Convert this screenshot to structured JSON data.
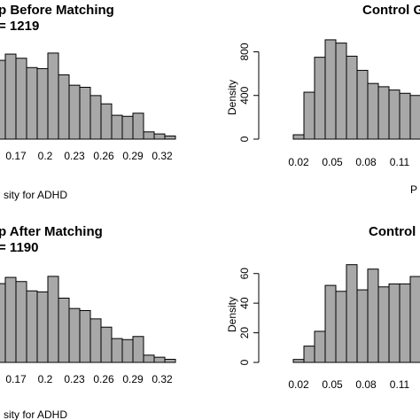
{
  "chart_data": [
    {
      "type": "bar",
      "title": "p Before Matching",
      "subtitle": "= 1219",
      "xlabel": "sity for ADHD",
      "ylabel": "",
      "x_ticks": [
        "0.17",
        "0.2",
        "0.23",
        "0.26",
        "0.29",
        "0.32"
      ],
      "y_ticks": [],
      "values": [
        760,
        820,
        780,
        690,
        680,
        830,
        620,
        520,
        500,
        420,
        340,
        230,
        220,
        250,
        70,
        50,
        30
      ],
      "ylim": [
        0,
        1000
      ]
    },
    {
      "type": "bar",
      "title": "Control G",
      "subtitle": "",
      "xlabel": "P",
      "ylabel": "Density",
      "x_ticks": [
        "0.02",
        "0.05",
        "0.08",
        "0.11"
      ],
      "y_ticks": [
        "0",
        "400",
        "800"
      ],
      "values": [
        40,
        430,
        750,
        910,
        880,
        760,
        630,
        510,
        480,
        450,
        420,
        400
      ],
      "ylim": [
        0,
        950
      ]
    },
    {
      "type": "bar",
      "title": "p After Matching",
      "subtitle": "= 1190",
      "xlabel": "sity for ADHD",
      "ylabel": "",
      "x_ticks": [
        "0.17",
        "0.2",
        "0.23",
        "0.26",
        "0.29",
        "0.32"
      ],
      "y_ticks": [],
      "values": [
        760,
        820,
        780,
        690,
        680,
        830,
        620,
        520,
        500,
        420,
        340,
        230,
        220,
        250,
        70,
        50,
        30
      ],
      "ylim": [
        0,
        1000
      ]
    },
    {
      "type": "bar",
      "title": "Control",
      "subtitle": "",
      "xlabel": "",
      "ylabel": "Density",
      "x_ticks": [
        "0.02",
        "0.05",
        "0.08",
        "0.11"
      ],
      "y_ticks": [
        "0",
        "20",
        "40",
        "60"
      ],
      "values": [
        2,
        11,
        21,
        52,
        48,
        66,
        49,
        63,
        51,
        53,
        53,
        58
      ],
      "ylim": [
        0,
        70
      ]
    }
  ]
}
